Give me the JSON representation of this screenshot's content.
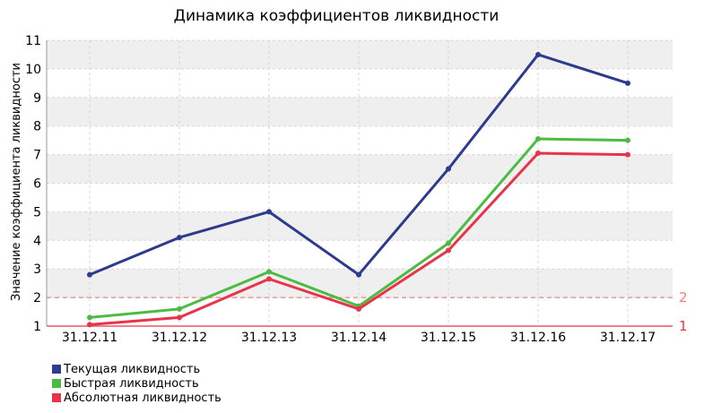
{
  "chart_data": {
    "type": "line",
    "title": "Динамика коэффициентов ликвидности",
    "ylabel": "Значение коэффициента ликвидности",
    "xlabel": "",
    "categories": [
      "31.12.11",
      "31.12.12",
      "31.12.13",
      "31.12.14",
      "31.12.15",
      "31.12.16",
      "31.12.17"
    ],
    "ylim": [
      1,
      11
    ],
    "yticks": [
      "1",
      "2",
      "3",
      "4",
      "5",
      "6",
      "7",
      "8",
      "9",
      "10",
      "11"
    ],
    "grid": true,
    "legend_position": "bottom-left",
    "series": [
      {
        "name": "Текущая ликвидность",
        "color": "#2e3a8c",
        "values": [
          2.8,
          4.1,
          5.0,
          2.8,
          6.5,
          10.5,
          9.5
        ]
      },
      {
        "name": "Быстрая ликвидность",
        "color": "#4cbb44",
        "values": [
          1.3,
          1.6,
          2.9,
          1.7,
          3.9,
          7.55,
          7.5
        ]
      },
      {
        "name": "Абсолютная ликвидность",
        "color": "#e8334a",
        "values": [
          1.05,
          1.3,
          2.65,
          1.6,
          3.65,
          7.05,
          7.0
        ]
      }
    ],
    "reference_lines": [
      {
        "value": 2,
        "label": "2",
        "color": "#f08080"
      },
      {
        "value": 1,
        "label": "1",
        "color": "#e8334a"
      }
    ]
  }
}
